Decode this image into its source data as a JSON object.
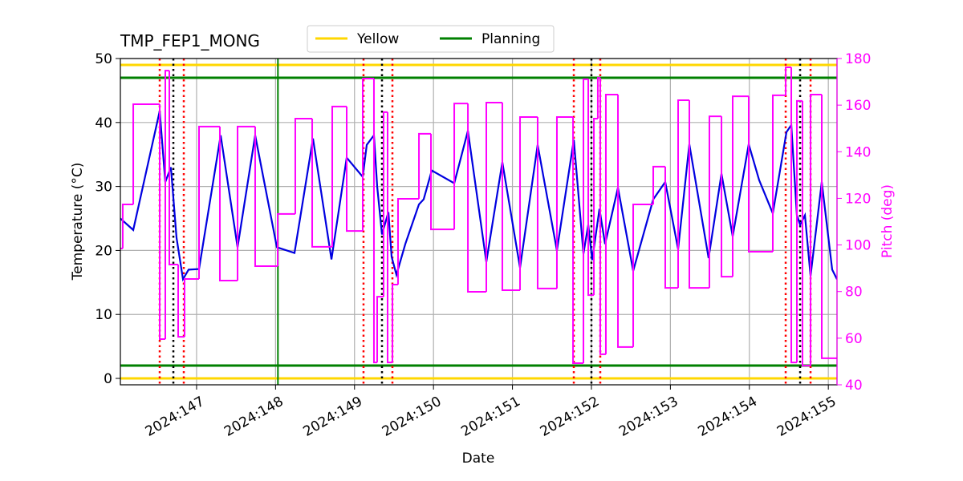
{
  "chart_data": {
    "type": "line",
    "title": "TMP_FEP1_MONG",
    "xlabel": "Date",
    "ylabel": "Temperature (°C)",
    "y2label": "Pitch (deg)",
    "xlim": [
      146.035,
      155.11
    ],
    "xticks": [
      {
        "value": 147,
        "label": "2024:147"
      },
      {
        "value": 148,
        "label": "2024:148"
      },
      {
        "value": 149,
        "label": "2024:149"
      },
      {
        "value": 150,
        "label": "2024:150"
      },
      {
        "value": 151,
        "label": "2024:151"
      },
      {
        "value": 152,
        "label": "2024:152"
      },
      {
        "value": 153,
        "label": "2024:153"
      },
      {
        "value": 154,
        "label": "2024:154"
      },
      {
        "value": 155,
        "label": "2024:155"
      }
    ],
    "ylim": [
      -1,
      50
    ],
    "yticks": [
      0,
      10,
      20,
      30,
      40,
      50
    ],
    "y2lim": [
      40,
      180
    ],
    "y2ticks": [
      40,
      60,
      80,
      100,
      120,
      140,
      160,
      180
    ],
    "y2color": "#ff00ff",
    "grid": true,
    "series": [
      {
        "color": "#0000e0",
        "axis": "y",
        "x": [
          146.035,
          146.198,
          146.533,
          146.604,
          146.675,
          146.746,
          146.828,
          146.899,
          147.031,
          147.305,
          147.519,
          147.742,
          148.017,
          148.24,
          148.474,
          148.708,
          148.901,
          149.104,
          149.155,
          149.246,
          149.287,
          149.348,
          149.429,
          149.47,
          149.531,
          149.643,
          149.816,
          149.876,
          149.978,
          150.263,
          150.436,
          150.669,
          150.872,
          151.096,
          151.319,
          151.563,
          151.777,
          151.899,
          151.96,
          152.01,
          152.102,
          152.173,
          152.336,
          152.529,
          152.783,
          152.935,
          153.098,
          153.24,
          153.484,
          153.647,
          153.789,
          153.992,
          154.124,
          154.297,
          154.47,
          154.531,
          154.602,
          154.643,
          154.704,
          154.775,
          154.917,
          155.049,
          155.11
        ],
        "values": [
          25,
          23.2,
          41.8,
          30.7,
          33,
          22,
          15.5,
          17,
          17.1,
          38,
          20.5,
          38,
          20.5,
          19.6,
          37.5,
          18.6,
          34.5,
          31.5,
          36.5,
          38,
          30,
          22.5,
          26,
          19,
          16.2,
          21,
          27.2,
          28,
          32.5,
          30.5,
          38.7,
          18.2,
          33.8,
          17.3,
          36.5,
          20,
          37.3,
          19.5,
          24,
          18.5,
          26.5,
          21,
          29.8,
          16.8,
          28,
          30.7,
          20.2,
          36.6,
          18.8,
          32,
          22.2,
          36.6,
          31,
          25.8,
          38.5,
          39.6,
          25.5,
          24,
          25.5,
          16,
          30.7,
          17,
          15.5
        ]
      },
      {
        "color": "#ff00ff",
        "axis": "y2",
        "step": "post",
        "x": [
          146.035,
          146.065,
          146.198,
          146.533,
          146.604,
          146.655,
          146.767,
          146.848,
          147.031,
          147.295,
          147.519,
          147.742,
          148.027,
          148.25,
          148.464,
          148.718,
          148.901,
          149.104,
          149.246,
          149.287,
          149.368,
          149.419,
          149.48,
          149.551,
          149.816,
          149.968,
          150.263,
          150.436,
          150.669,
          150.872,
          151.096,
          151.319,
          151.563,
          151.767,
          151.899,
          151.96,
          152.031,
          152.081,
          152.112,
          152.183,
          152.336,
          152.529,
          152.783,
          152.935,
          153.098,
          153.24,
          153.494,
          153.647,
          153.789,
          153.992,
          154.297,
          154.46,
          154.531,
          154.602,
          154.673,
          154.775,
          154.917,
          155.11
        ],
        "values": [
          98.5,
          117.4,
          160.4,
          59.6,
          174.8,
          91.6,
          60.6,
          85.4,
          150.8,
          84.7,
          150.8,
          90.9,
          113.3,
          154.2,
          99.2,
          159.4,
          106.0,
          171.4,
          49.6,
          77.8,
          157,
          49.6,
          83.0,
          119.8,
          147.7,
          106.7,
          160.7,
          79.9,
          161.1,
          80.6,
          154.9,
          81.3,
          154.9,
          49.3,
          171.1,
          78.5,
          154.2,
          171.7,
          53.1,
          164.5,
          56.2,
          117.4,
          133.6,
          81.6,
          162.1,
          81.6,
          155.2,
          86.4,
          163.8,
          97.1,
          164.2,
          176.2,
          49.6,
          161.8,
          48.2,
          164.5,
          51.4,
          51.4
        ]
      }
    ],
    "limits": [
      {
        "name": "Yellow",
        "color": "#ffd700",
        "values": [
          0,
          49
        ]
      },
      {
        "name": "Planning",
        "color": "#008000",
        "values": [
          2,
          47
        ]
      }
    ],
    "vlines": [
      {
        "color": "#ff0000",
        "style": "dotted",
        "x": [
          146.533,
          146.838,
          149.114,
          149.48,
          151.777,
          152.112,
          154.46,
          154.775
        ]
      },
      {
        "color": "#000000",
        "style": "dotted",
        "x": [
          146.706,
          149.348,
          152.0,
          154.643
        ]
      },
      {
        "color": "#008000",
        "style": "solid",
        "x": [
          148.03
        ]
      }
    ],
    "legend": "upper center"
  }
}
